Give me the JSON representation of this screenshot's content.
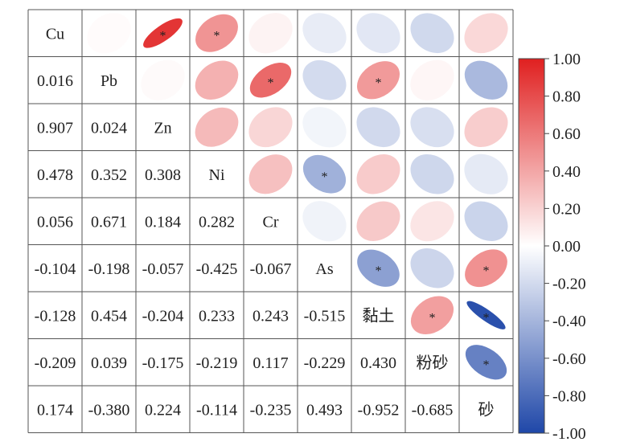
{
  "chart_data": {
    "type": "heatmap",
    "variables": [
      "Cu",
      "Pb",
      "Zn",
      "Ni",
      "Cr",
      "As",
      "黏土",
      "粉砂",
      "砂"
    ],
    "matrix": [
      [
        1.0,
        0.016,
        0.907,
        0.478,
        0.056,
        -0.104,
        -0.128,
        -0.209,
        0.174
      ],
      [
        0.016,
        1.0,
        0.024,
        0.352,
        0.671,
        -0.198,
        0.454,
        0.039,
        -0.38
      ],
      [
        0.907,
        0.024,
        1.0,
        0.308,
        0.184,
        -0.057,
        -0.204,
        -0.175,
        0.224
      ],
      [
        0.478,
        0.352,
        0.308,
        1.0,
        0.282,
        -0.425,
        0.233,
        -0.219,
        -0.114
      ],
      [
        0.056,
        0.671,
        0.184,
        0.282,
        1.0,
        -0.067,
        0.243,
        0.117,
        -0.235
      ],
      [
        -0.104,
        -0.198,
        -0.057,
        -0.425,
        -0.067,
        1.0,
        -0.515,
        -0.229,
        0.493
      ],
      [
        -0.128,
        0.454,
        -0.204,
        0.233,
        0.243,
        -0.515,
        1.0,
        0.43,
        -0.952
      ],
      [
        -0.209,
        0.039,
        -0.175,
        -0.219,
        0.117,
        -0.229,
        0.43,
        1.0,
        -0.685
      ],
      [
        0.174,
        -0.38,
        0.224,
        -0.114,
        -0.235,
        0.493,
        -0.952,
        -0.685,
        1.0
      ]
    ],
    "lower_labels": [
      [
        "0.016"
      ],
      [
        "0.907",
        "0.024"
      ],
      [
        "0.478",
        "0.352",
        "0.308"
      ],
      [
        "0.056",
        "0.671",
        "0.184",
        "0.282"
      ],
      [
        "-0.104",
        "-0.198",
        "-0.057",
        "-0.425",
        "-0.067"
      ],
      [
        "-0.128",
        "0.454",
        "-0.204",
        "0.233",
        "0.243",
        "-0.515"
      ],
      [
        "-0.209",
        "0.039",
        "-0.175",
        "-0.219",
        "0.117",
        "-0.229",
        "0.430"
      ],
      [
        "0.174",
        "-0.380",
        "0.224",
        "-0.114",
        "-0.235",
        "0.493",
        "-0.952",
        "-0.685"
      ]
    ],
    "significance_marker": "*",
    "significant_pairs": [
      [
        0,
        2
      ],
      [
        0,
        3
      ],
      [
        1,
        4
      ],
      [
        1,
        6
      ],
      [
        3,
        5
      ],
      [
        5,
        6
      ],
      [
        5,
        8
      ],
      [
        6,
        7
      ],
      [
        6,
        8
      ],
      [
        7,
        8
      ]
    ],
    "upper_display": "ellipse",
    "lower_display": "number",
    "colorbar": {
      "range": [
        -1.0,
        1.0
      ],
      "ticks": [
        "1.00",
        "0.80",
        "0.60",
        "0.40",
        "0.20",
        "0.00",
        "-0.20",
        "-0.40",
        "-0.60",
        "-0.80",
        "-1.00"
      ],
      "colors": {
        "negative": "#1f47a8",
        "neutral": "#ffffff",
        "positive": "#e02020"
      }
    },
    "title": "",
    "xlabel": "",
    "ylabel": ""
  }
}
